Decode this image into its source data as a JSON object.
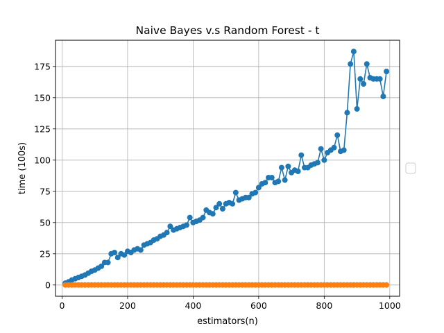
{
  "chart_data": {
    "type": "line",
    "title": "Naive Bayes v.s Random Forest - t",
    "xlabel": "estimators(n)",
    "ylabel": "time (100s)",
    "xlim": [
      -20,
      1030
    ],
    "ylim": [
      -9,
      196
    ],
    "xticks": [
      0,
      200,
      400,
      600,
      800,
      1000
    ],
    "yticks": [
      0,
      25,
      50,
      75,
      100,
      125,
      150,
      175
    ],
    "grid": true,
    "legend": "center-right, empty",
    "x": [
      10,
      20,
      30,
      40,
      50,
      60,
      70,
      80,
      90,
      100,
      110,
      120,
      130,
      140,
      150,
      160,
      170,
      180,
      190,
      200,
      210,
      220,
      230,
      240,
      250,
      260,
      270,
      280,
      290,
      300,
      310,
      320,
      330,
      340,
      350,
      360,
      370,
      380,
      390,
      400,
      410,
      420,
      430,
      440,
      450,
      460,
      470,
      480,
      490,
      500,
      510,
      520,
      530,
      540,
      550,
      560,
      570,
      580,
      590,
      600,
      610,
      620,
      630,
      640,
      650,
      660,
      670,
      680,
      690,
      700,
      710,
      720,
      730,
      740,
      750,
      760,
      770,
      780,
      790,
      800,
      810,
      820,
      830,
      840,
      850,
      860,
      870,
      880,
      890,
      900,
      910,
      920,
      930,
      940,
      950,
      960,
      970,
      980,
      990
    ],
    "series": [
      {
        "color": "#1f77b4",
        "marker": "circle",
        "values": [
          1.5,
          2.5,
          4,
          5,
          6,
          7,
          8,
          9.5,
          11,
          12,
          13.5,
          15,
          18,
          18,
          25,
          26,
          22,
          25,
          24,
          27,
          26,
          28,
          29,
          28,
          32,
          33,
          34,
          36,
          37,
          39,
          40,
          42,
          47,
          44,
          45,
          46,
          47,
          48,
          54,
          50,
          51,
          52,
          54,
          60,
          58,
          57,
          62,
          65,
          61,
          65,
          66,
          65,
          74,
          68,
          69,
          70,
          70,
          73,
          74,
          78,
          81,
          82,
          86,
          86,
          82,
          83,
          94,
          84,
          95,
          90,
          92,
          91,
          104,
          94,
          94,
          96,
          97,
          98,
          109,
          100,
          106,
          108,
          110,
          120,
          107,
          108,
          138,
          177,
          187,
          141,
          165,
          161,
          177,
          166,
          165,
          165,
          165,
          151,
          171
        ]
      },
      {
        "color": "#ff7f0e",
        "marker": "circle",
        "values": [
          0,
          0,
          0,
          0,
          0,
          0,
          0,
          0,
          0,
          0,
          0,
          0,
          0,
          0,
          0,
          0,
          0,
          0,
          0,
          0,
          0,
          0,
          0,
          0,
          0,
          0,
          0,
          0,
          0,
          0,
          0,
          0,
          0,
          0,
          0,
          0,
          0,
          0,
          0,
          0,
          0,
          0,
          0,
          0,
          0,
          0,
          0,
          0,
          0,
          0,
          0,
          0,
          0,
          0,
          0,
          0,
          0,
          0,
          0,
          0,
          0,
          0,
          0,
          0,
          0,
          0,
          0,
          0,
          0,
          0,
          0,
          0,
          0,
          0,
          0,
          0,
          0,
          0,
          0,
          0,
          0,
          0,
          0,
          0,
          0,
          0,
          0,
          0,
          0,
          0,
          0,
          0,
          0,
          0,
          0,
          0,
          0,
          0,
          0
        ]
      }
    ]
  }
}
